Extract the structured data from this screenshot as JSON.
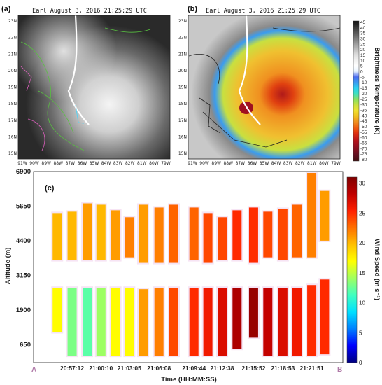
{
  "panel_a": {
    "label": "(a)",
    "title": "Earl August 3, 2016 21:25:29 UTC",
    "lat_ticks": [
      "23N",
      "22N",
      "21N",
      "20N",
      "19N",
      "18N",
      "17N",
      "16N",
      "15N"
    ],
    "lon_ticks": [
      "91W",
      "90W",
      "89W",
      "88W",
      "87W",
      "86W",
      "85W",
      "84W",
      "83W",
      "82W",
      "81W",
      "80W",
      "79W"
    ]
  },
  "panel_b": {
    "label": "(b)",
    "title": "Earl August 3, 2016 21:25:29 UTC",
    "lat_ticks": [
      "23N",
      "22N",
      "21N",
      "20N",
      "19N",
      "18N",
      "17N",
      "16N",
      "15N"
    ],
    "lon_ticks": [
      "91W",
      "90W",
      "89W",
      "88W",
      "87W",
      "86W",
      "85W",
      "84W",
      "83W",
      "82W",
      "81W",
      "80W",
      "79W"
    ],
    "colorbar_label": "Brightness Temperature (K)",
    "colorbar_ticks": [
      "45",
      "40",
      "35",
      "30",
      "25",
      "20",
      "15",
      "10",
      "5",
      "0",
      "-5",
      "-10",
      "-15",
      "-20",
      "-25",
      "-30",
      "-35",
      "-40",
      "-45",
      "-50",
      "-55",
      "-60",
      "-65",
      "-70",
      "-75",
      "-80"
    ],
    "colorbar_colors": [
      "#111111",
      "#333333",
      "#555555",
      "#777777",
      "#999999",
      "#bbbbbb",
      "#dddddd",
      "#f0f0f0",
      "#ffffff",
      "#e8f4ff",
      "#4a6cf0",
      "#3a9cf0",
      "#2ad0f0",
      "#3fe0c0",
      "#8ae060",
      "#c8e040",
      "#f0e030",
      "#f0c020",
      "#f09020",
      "#f06010",
      "#e03010",
      "#c01818",
      "#a01020",
      "#801020",
      "#601020",
      "#401010"
    ]
  },
  "chart_data": {
    "label": "(c)",
    "type": "heatmap",
    "xlabel": "Time (HH:MM:SS)",
    "ylabel": "Altitude (m)",
    "x_ticks": [
      "20:57:12",
      "21:00:10",
      "21:03:05",
      "21:06:08",
      "21:09:44",
      "21:12:38",
      "21:15:52",
      "21:18:53",
      "21:21:51"
    ],
    "y_ticks": [
      6900,
      5650,
      4400,
      3150,
      1900,
      650
    ],
    "ylim": [
      0,
      6900
    ],
    "start_label": "A",
    "end_label": "B",
    "colorbar": {
      "label": "Wind Speed (m s⁻¹)",
      "range": [
        0,
        31
      ],
      "ticks": [
        30,
        25,
        20,
        15,
        10,
        5,
        0
      ],
      "colors": [
        "#000080",
        "#0000ff",
        "#0080ff",
        "#00e0ff",
        "#40ffc0",
        "#a0ff60",
        "#ffff00",
        "#ffc000",
        "#ff7000",
        "#ff2000",
        "#c00000",
        "#800000"
      ]
    },
    "profiles": [
      {
        "t": "20:55:40",
        "segments": [
          [
            3700,
            5400,
            20
          ],
          [
            1100,
            2700,
            17
          ]
        ]
      },
      {
        "t": "20:57:12",
        "segments": [
          [
            3700,
            5450,
            20
          ],
          [
            250,
            2700,
            13
          ]
        ]
      },
      {
        "t": "20:58:45",
        "segments": [
          [
            3700,
            5750,
            21
          ],
          [
            250,
            2700,
            12
          ]
        ]
      },
      {
        "t": "21:00:10",
        "segments": [
          [
            3700,
            5700,
            20
          ],
          [
            250,
            2700,
            14
          ]
        ]
      },
      {
        "t": "21:01:40",
        "segments": [
          [
            3700,
            5500,
            21
          ],
          [
            250,
            2700,
            17
          ]
        ]
      },
      {
        "t": "21:03:05",
        "segments": [
          [
            3800,
            5250,
            22
          ],
          [
            250,
            2700,
            17
          ]
        ]
      },
      {
        "t": "21:04:30",
        "segments": [
          [
            3600,
            5700,
            21
          ],
          [
            250,
            2650,
            21
          ]
        ]
      },
      {
        "t": "21:06:08",
        "segments": [
          [
            3600,
            5600,
            22
          ],
          [
            250,
            2700,
            22
          ]
        ]
      },
      {
        "t": "21:07:40",
        "segments": [
          [
            3600,
            5700,
            23
          ],
          [
            250,
            2700,
            24
          ]
        ]
      },
      {
        "t": "21:09:44",
        "segments": [
          [
            3700,
            5600,
            23
          ],
          [
            250,
            2700,
            25
          ]
        ]
      },
      {
        "t": "21:11:10",
        "segments": [
          [
            3600,
            5400,
            24
          ],
          [
            250,
            2700,
            26
          ]
        ]
      },
      {
        "t": "21:12:38",
        "segments": [
          [
            3700,
            5250,
            24
          ],
          [
            250,
            2700,
            27
          ]
        ]
      },
      {
        "t": "21:14:10",
        "segments": [
          [
            3700,
            5500,
            25
          ],
          [
            500,
            2700,
            29
          ]
        ]
      },
      {
        "t": "21:15:52",
        "segments": [
          [
            3600,
            5600,
            25
          ],
          [
            900,
            2700,
            30
          ]
        ]
      },
      {
        "t": "21:17:20",
        "segments": [
          [
            3800,
            5450,
            24
          ],
          [
            250,
            2700,
            28
          ]
        ]
      },
      {
        "t": "21:18:53",
        "segments": [
          [
            3700,
            5550,
            24
          ],
          [
            250,
            2700,
            27
          ]
        ]
      },
      {
        "t": "21:20:20",
        "segments": [
          [
            3800,
            5700,
            23
          ],
          [
            250,
            2700,
            26
          ]
        ]
      },
      {
        "t": "21:21:51",
        "segments": [
          [
            3800,
            6850,
            22
          ],
          [
            250,
            2800,
            25
          ]
        ]
      },
      {
        "t": "21:23:10",
        "segments": [
          [
            4400,
            6200,
            21
          ],
          [
            300,
            3000,
            25
          ]
        ]
      }
    ]
  }
}
